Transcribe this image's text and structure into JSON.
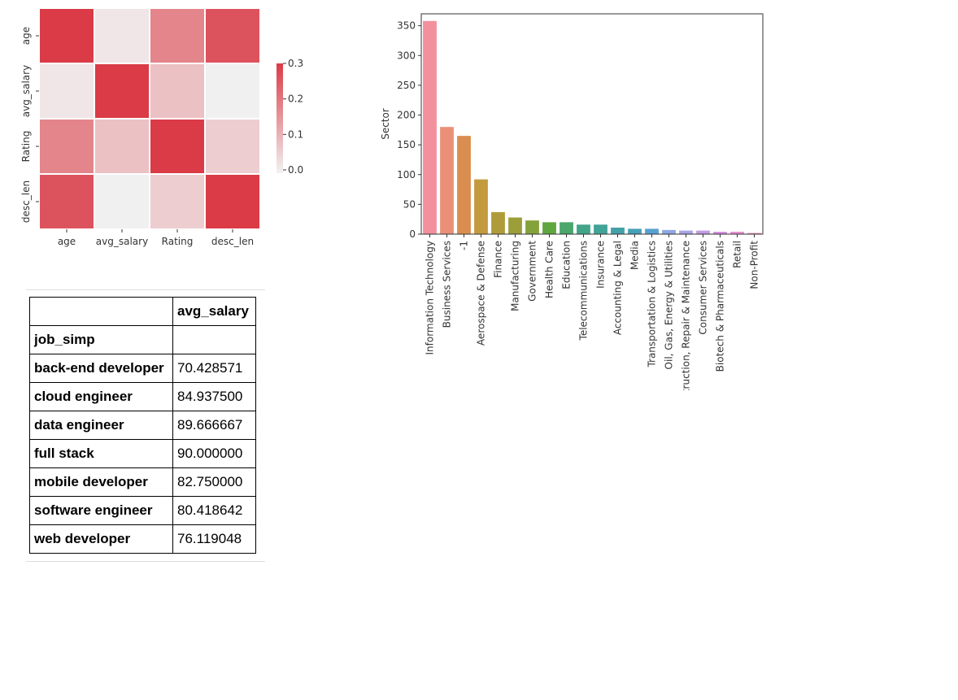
{
  "chart_data": [
    {
      "type": "heatmap",
      "rows": [
        "age",
        "avg_salary",
        "Rating",
        "desc_len"
      ],
      "columns": [
        "age",
        "avg_salary",
        "Rating",
        "desc_len"
      ],
      "values": [
        [
          1.0,
          0.02,
          0.18,
          0.26
        ],
        [
          0.02,
          1.0,
          0.08,
          0.0
        ],
        [
          0.18,
          0.08,
          1.0,
          0.06
        ],
        [
          0.26,
          0.0,
          0.06,
          1.0
        ]
      ],
      "colorbar": {
        "ticks": [
          "0.0",
          "0.1",
          "0.2",
          "0.3"
        ],
        "tick_values": [
          0.0,
          0.1,
          0.2,
          0.3
        ],
        "range": [
          0,
          0.3
        ]
      },
      "colors": {
        "high": "#da3b46",
        "low": "#f2f2f2",
        "negative": "#eef3f8"
      }
    },
    {
      "type": "bar",
      "ylabel": "Sector",
      "ylim": [
        0,
        370
      ],
      "yticks": [
        0,
        50,
        100,
        150,
        200,
        250,
        300,
        350
      ],
      "categories": [
        "Information Technology",
        "Business Services",
        "-1",
        "Aerospace & Defense",
        "Finance",
        "Manufacturing",
        "Government",
        "Health Care",
        "Education",
        "Telecommunications",
        "Insurance",
        "Accounting & Legal",
        "Media",
        "Transportation & Logistics",
        "Oil, Gas, Energy & Utilities",
        "Construction, Repair & Maintenance",
        "Consumer Services",
        "Biotech & Pharmaceuticals",
        "Retail",
        "Non-Profit"
      ],
      "values": [
        358,
        180,
        165,
        92,
        37,
        28,
        23,
        20,
        20,
        16,
        16,
        11,
        9,
        9,
        7,
        6,
        6,
        4,
        4,
        2
      ],
      "colors": [
        "#f2909d",
        "#ea9079",
        "#d98e4f",
        "#c49a3e",
        "#b09b3a",
        "#9c9e3a",
        "#84a23a",
        "#5ea63e",
        "#4aa66a",
        "#42a58a",
        "#42a398",
        "#44a1a8",
        "#46a0b6",
        "#56a1d2",
        "#8fa7e2",
        "#aaa4e8",
        "#c29ce6",
        "#d58fe0",
        "#e68dd0",
        "#ee90b5"
      ]
    }
  ],
  "table": {
    "column_header": "avg_salary",
    "index_name": "job_simp",
    "rows": [
      {
        "label": "back-end developer",
        "value": "70.428571"
      },
      {
        "label": "cloud engineer",
        "value": "84.937500"
      },
      {
        "label": "data engineer",
        "value": "89.666667"
      },
      {
        "label": "full stack",
        "value": "90.000000"
      },
      {
        "label": "mobile developer",
        "value": "82.750000"
      },
      {
        "label": "software engineer",
        "value": "80.418642"
      },
      {
        "label": "web developer",
        "value": "76.119048"
      }
    ]
  }
}
